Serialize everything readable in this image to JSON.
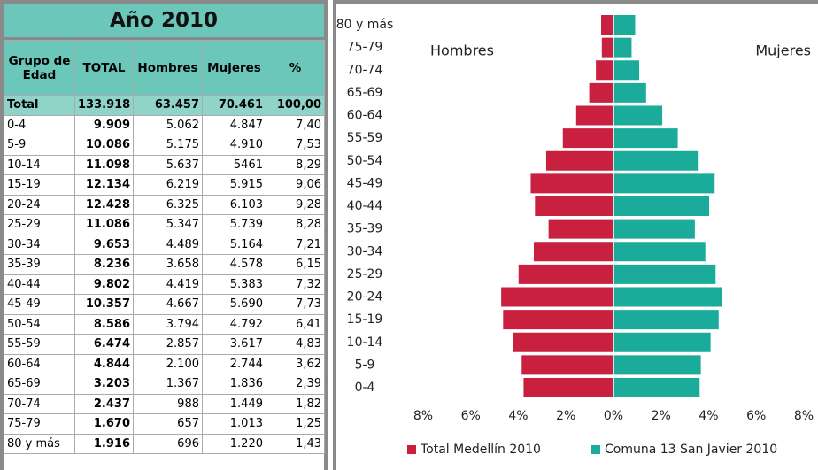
{
  "table": {
    "title": "Año 2010",
    "headers": [
      "Grupo de Edad",
      "TOTAL",
      "Hombres",
      "Mujeres",
      "%"
    ],
    "rows": [
      [
        "Total",
        "133.918",
        "63.457",
        "70.461",
        "100,00"
      ],
      [
        "0-4",
        "9.909",
        "5.062",
        "4.847",
        "7,40"
      ],
      [
        "5-9",
        "10.086",
        "5.175",
        "4.910",
        "7,53"
      ],
      [
        "10-14",
        "11.098",
        "5.637",
        "5461",
        "8,29"
      ],
      [
        "15-19",
        "12.134",
        "6.219",
        "5.915",
        "9,06"
      ],
      [
        "20-24",
        "12.428",
        "6.325",
        "6.103",
        "9,28"
      ],
      [
        "25-29",
        "11.086",
        "5.347",
        "5.739",
        "8,28"
      ],
      [
        "30-34",
        "9.653",
        "4.489",
        "5.164",
        "7,21"
      ],
      [
        "35-39",
        "8.236",
        "3.658",
        "4.578",
        "6,15"
      ],
      [
        "40-44",
        "9.802",
        "4.419",
        "5.383",
        "7,32"
      ],
      [
        "45-49",
        "10.357",
        "4.667",
        "5.690",
        "7,73"
      ],
      [
        "50-54",
        "8.586",
        "3.794",
        "4.792",
        "6,41"
      ],
      [
        "55-59",
        "6.474",
        "2.857",
        "3.617",
        "4,83"
      ],
      [
        "60-64",
        "4.844",
        "2.100",
        "2.744",
        "3,62"
      ],
      [
        "65-69",
        "3.203",
        "1.367",
        "1.836",
        "2,39"
      ],
      [
        "70-74",
        "2.437",
        "988",
        "1.449",
        "1,82"
      ],
      [
        "75-79",
        "1.670",
        "657",
        "1.013",
        "1,25"
      ],
      [
        "80 y más",
        "1.916",
        "696",
        "1.220",
        "1,43"
      ]
    ]
  },
  "chart_data": {
    "type": "pyramid",
    "categories": [
      "0-4",
      "5-9",
      "10-14",
      "15-19",
      "20-24",
      "25-29",
      "30-34",
      "35-39",
      "40-44",
      "45-49",
      "50-54",
      "55-59",
      "60-64",
      "65-69",
      "70-74",
      "75-79",
      "80 y más"
    ],
    "series": [
      {
        "name": "Total Medellín 2010",
        "color": "#c8203e",
        "values": [
          -3.78,
          -3.86,
          -4.21,
          -4.64,
          -4.72,
          -3.99,
          -3.35,
          -2.73,
          -3.3,
          -3.48,
          -2.83,
          -2.13,
          -1.57,
          -1.02,
          -0.74,
          -0.49,
          -0.52
        ]
      },
      {
        "name": "Comuna 13 San Javier 2010",
        "color": "#1aab9b",
        "values": [
          3.62,
          3.67,
          4.08,
          4.42,
          4.56,
          4.29,
          3.86,
          3.42,
          4.02,
          4.25,
          3.58,
          2.7,
          2.05,
          1.37,
          1.08,
          0.76,
          0.91
        ]
      }
    ],
    "annotations": [
      "Hombres",
      "Mujeres"
    ],
    "xlim": [
      -8,
      8
    ],
    "xticks": [
      {
        "value": -8,
        "label": "8%"
      },
      {
        "value": -6,
        "label": "6%"
      },
      {
        "value": -4,
        "label": "4%"
      },
      {
        "value": -2,
        "label": "2%"
      },
      {
        "value": 0,
        "label": "0%"
      },
      {
        "value": 2,
        "label": "2%"
      },
      {
        "value": 4,
        "label": "4%"
      },
      {
        "value": 6,
        "label": "6%"
      },
      {
        "value": 8,
        "label": "8%"
      }
    ],
    "legend": "bottom"
  }
}
